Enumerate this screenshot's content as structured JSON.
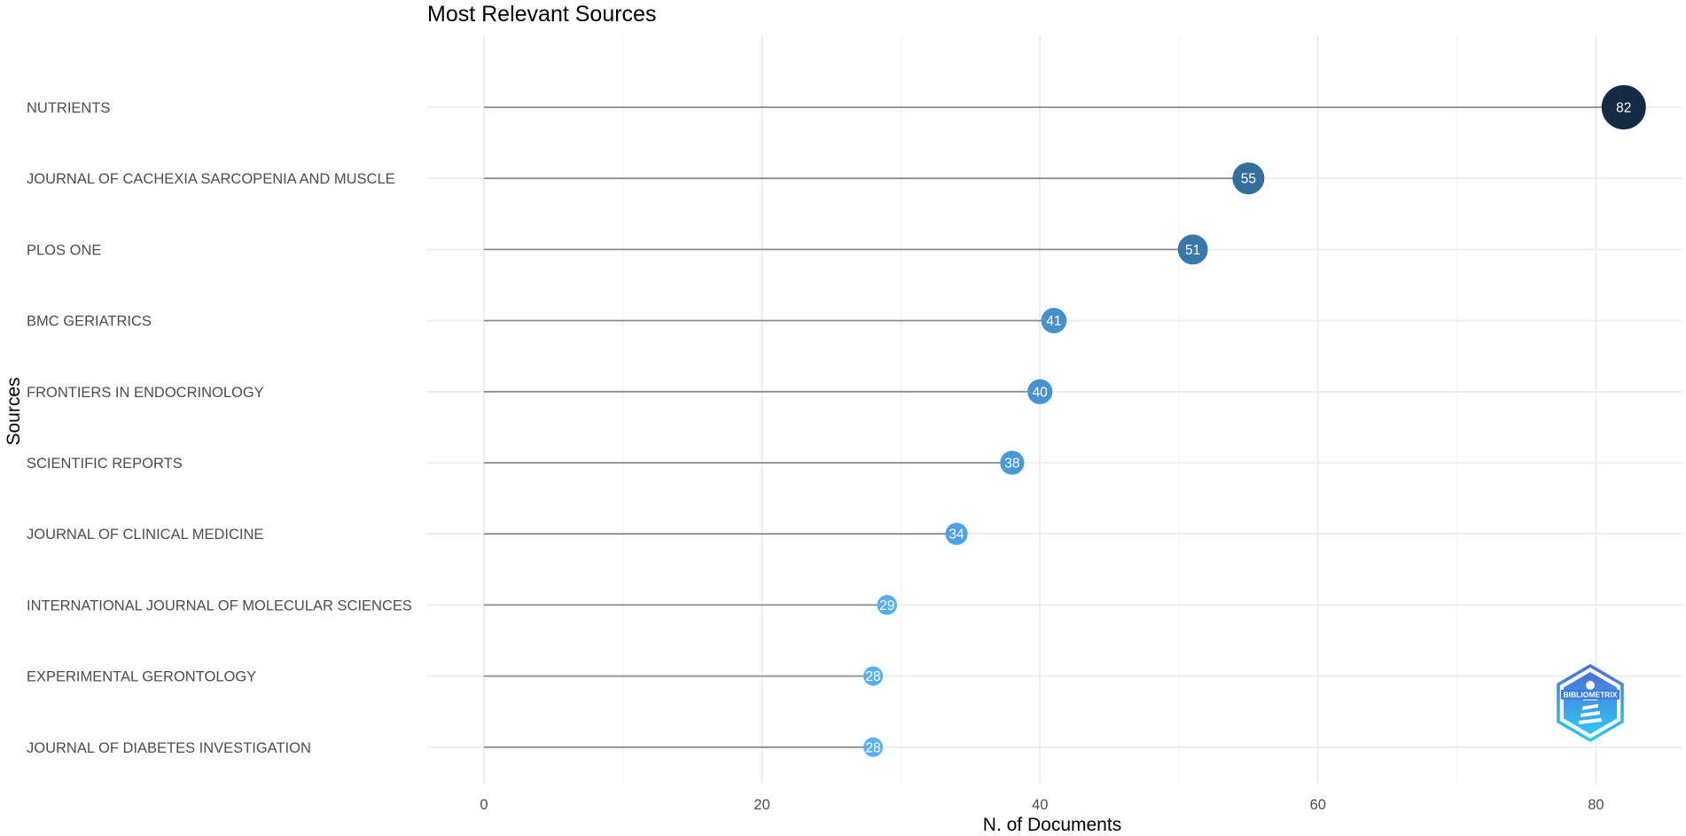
{
  "chart_data": {
    "type": "lollipop",
    "title": "Most Relevant Sources",
    "xlabel": "N. of Documents",
    "ylabel": "Sources",
    "xlim": [
      0,
      85
    ],
    "xticks": [
      0,
      20,
      40,
      60,
      80
    ],
    "grid": true,
    "categories": [
      "NUTRIENTS",
      "JOURNAL OF CACHEXIA SARCOPENIA AND MUSCLE",
      "PLOS ONE",
      "BMC GERIATRICS",
      "FRONTIERS IN ENDOCRINOLOGY",
      "SCIENTIFIC REPORTS",
      "JOURNAL OF CLINICAL MEDICINE",
      "INTERNATIONAL JOURNAL OF MOLECULAR SCIENCES",
      "EXPERIMENTAL GERONTOLOGY",
      "JOURNAL OF DIABETES INVESTIGATION"
    ],
    "values": [
      82,
      55,
      51,
      41,
      40,
      38,
      34,
      29,
      28,
      28
    ],
    "color_scale": [
      "#56b1f7",
      "#132b43"
    ],
    "logo": {
      "name": "bibliometrix-logo",
      "text": "BIBLIOMETRIX",
      "colors": [
        "#4f6fd6",
        "#2fc7f4"
      ]
    }
  }
}
